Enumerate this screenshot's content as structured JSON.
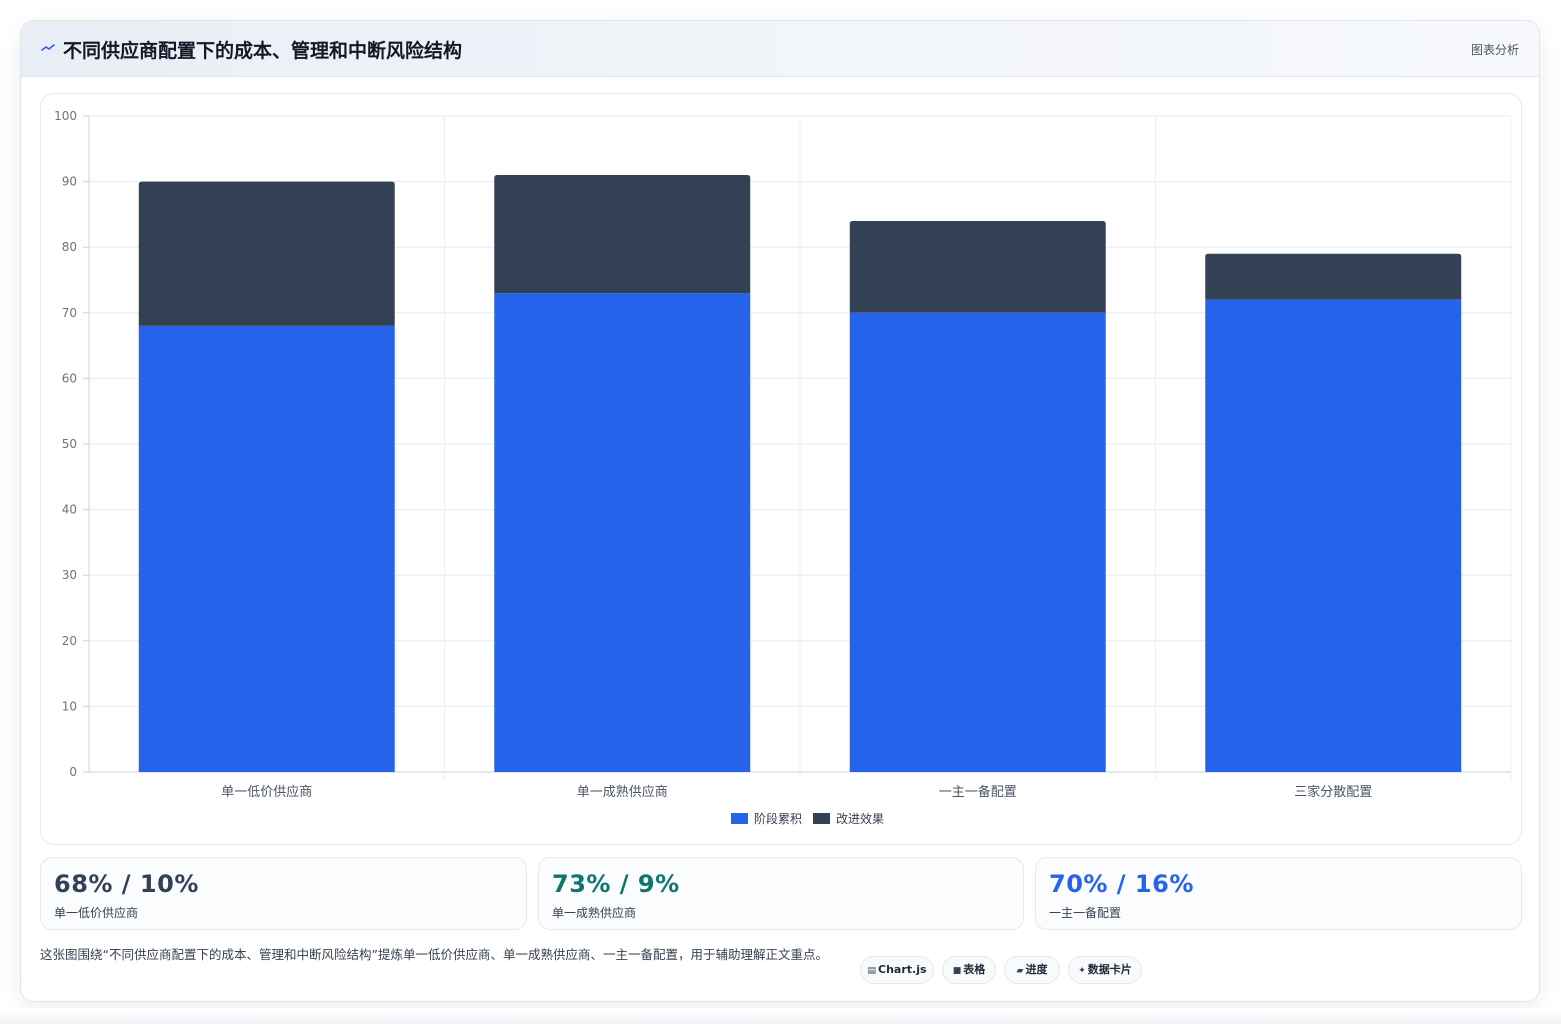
{
  "header": {
    "icon": "sparkline-icon",
    "title": "不同供应商配置下的成本、管理和中断风险结构",
    "right_label": "图表分析"
  },
  "chart_data": {
    "type": "bar",
    "stacked": true,
    "categories": [
      "单一低价供应商",
      "单一成熟供应商",
      "一主一备配置",
      "三家分散配置"
    ],
    "series": [
      {
        "name": "阶段累积",
        "color": "#2563eb",
        "values": [
          68,
          73,
          70,
          72
        ]
      },
      {
        "name": "改进效果",
        "color": "#334155",
        "values": [
          22,
          18,
          14,
          7
        ]
      }
    ],
    "ylim": [
      0,
      100
    ],
    "yticks": [
      0,
      10,
      20,
      30,
      40,
      50,
      60,
      70,
      80,
      90,
      100
    ],
    "grid": true,
    "legend": "bottom-center"
  },
  "stats": [
    {
      "value": "68% / 10%",
      "label": "单一低价供应商",
      "color": "#334155"
    },
    {
      "value": "73% / 9%",
      "label": "单一成熟供应商",
      "color": "#0f766e"
    },
    {
      "value": "70% / 16%",
      "label": "一主一备配置",
      "color": "#2563eb"
    }
  ],
  "footer": {
    "note": "这张图围绕“不同供应商配置下的成本、管理和中断风险结构”提炼单一低价供应商、单一成熟供应商、一主一备配置，用于辅助理解正文重点。",
    "tags": [
      {
        "icon": "▤",
        "label": "Chart.js"
      },
      {
        "icon": "■",
        "label": "表格"
      },
      {
        "icon": "▰",
        "label": "进度"
      },
      {
        "icon": "✦",
        "label": "数据卡片"
      }
    ]
  }
}
